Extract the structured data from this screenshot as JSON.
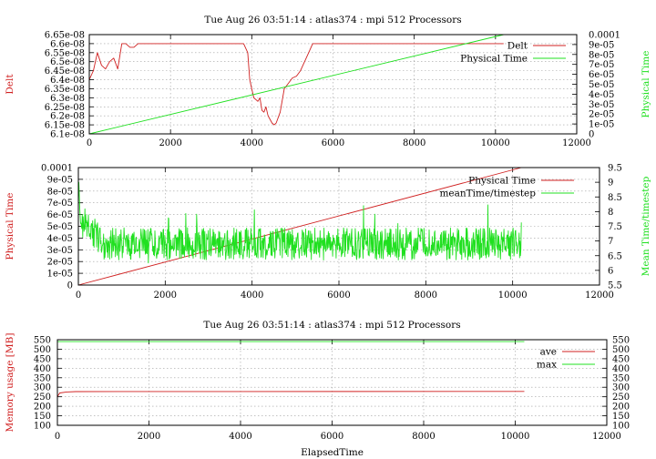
{
  "colors": {
    "red": "#d02020",
    "green": "#20e020",
    "grid": "#a0a0a0",
    "axis": "#000000"
  },
  "chart_data": [
    {
      "type": "line",
      "title": "Tue Aug 26 03:51:14 : atlas374 : mpi 512 Processors",
      "xlabel": "",
      "ylabel": "Delt",
      "y2label": "Physical Time",
      "xlim": [
        0,
        12000
      ],
      "ylim": [
        6.1e-08,
        6.65e-08
      ],
      "y2lim": [
        0,
        0.0001
      ],
      "x_ticks": [
        "0",
        "2000",
        "4000",
        "6000",
        "8000",
        "10000",
        "12000"
      ],
      "y_ticks": [
        "6.1e-08",
        "6.15e-08",
        "6.2e-08",
        "6.25e-08",
        "6.3e-08",
        "6.35e-08",
        "6.4e-08",
        "6.45e-08",
        "6.5e-08",
        "6.55e-08",
        "6.6e-08",
        "6.65e-08"
      ],
      "y2_ticks": [
        "0",
        "1e-05",
        "2e-05",
        "3e-05",
        "4e-05",
        "5e-05",
        "6e-05",
        "7e-05",
        "8e-05",
        "9e-05",
        "0.0001"
      ],
      "grid": true,
      "legend_position": "top-right",
      "series": [
        {
          "name": "Delt",
          "color": "#d02020",
          "axis": "y",
          "x": [
            0,
            100,
            200,
            300,
            400,
            500,
            600,
            700,
            800,
            900,
            1000,
            1100,
            1200,
            1400,
            2000,
            2500,
            3000,
            3500,
            3800,
            3900,
            3950,
            4000,
            4050,
            4100,
            4150,
            4200,
            4250,
            4300,
            4350,
            4400,
            4450,
            4500,
            4550,
            4600,
            4700,
            4800,
            4900,
            5000,
            5100,
            5200,
            5300,
            5400,
            5500,
            6000,
            7000,
            8000,
            9000,
            10200
          ],
          "y": [
            6.4e-08,
            6.45e-08,
            6.55e-08,
            6.48e-08,
            6.46e-08,
            6.5e-08,
            6.52e-08,
            6.46e-08,
            6.6e-08,
            6.6e-08,
            6.58e-08,
            6.58e-08,
            6.6e-08,
            6.6e-08,
            6.6e-08,
            6.6e-08,
            6.6e-08,
            6.6e-08,
            6.6e-08,
            6.55e-08,
            6.4e-08,
            6.35e-08,
            6.3e-08,
            6.29e-08,
            6.28e-08,
            6.3e-08,
            6.23e-08,
            6.22e-08,
            6.25e-08,
            6.2e-08,
            6.18e-08,
            6.16e-08,
            6.15e-08,
            6.16e-08,
            6.22e-08,
            6.35e-08,
            6.38e-08,
            6.41e-08,
            6.42e-08,
            6.45e-08,
            6.5e-08,
            6.55e-08,
            6.6e-08,
            6.6e-08,
            6.6e-08,
            6.6e-08,
            6.6e-08,
            6.6e-08
          ]
        },
        {
          "name": "Physical Time",
          "color": "#20e020",
          "axis": "y2",
          "x": [
            0,
            10200
          ],
          "y": [
            0,
            0.0001
          ]
        }
      ]
    },
    {
      "type": "line",
      "title": "",
      "xlabel": "",
      "ylabel": "Physical Time",
      "y2label": "Mean Time/timestep",
      "xlim": [
        0,
        12000
      ],
      "ylim": [
        0,
        0.0001
      ],
      "y2lim": [
        5.5,
        9.5
      ],
      "x_ticks": [
        "0",
        "2000",
        "4000",
        "6000",
        "8000",
        "10000",
        "12000"
      ],
      "y_ticks": [
        "0",
        "1e-05",
        "2e-05",
        "3e-05",
        "4e-05",
        "5e-05",
        "6e-05",
        "7e-05",
        "8e-05",
        "9e-05",
        "0.0001"
      ],
      "y2_ticks": [
        "5.5",
        "6",
        "6.5",
        "7",
        "7.5",
        "8",
        "8.5",
        "9",
        "9.5"
      ],
      "grid": true,
      "legend_position": "top-right",
      "series": [
        {
          "name": "Physical Time",
          "color": "#d02020",
          "axis": "y",
          "x": [
            0,
            10200
          ],
          "y": [
            0,
            0.0001
          ]
        },
        {
          "name": "meanTime/timestep",
          "color": "#20e020",
          "axis": "y2",
          "x_range": [
            0,
            10200
          ],
          "points": 1020,
          "mean": 6.9,
          "noise_amplitude": 0.55,
          "start_values": [
            8.4,
            9.0,
            8.6,
            8.2,
            7.9,
            7.6
          ]
        }
      ]
    },
    {
      "type": "line",
      "title": "Tue Aug 26 03:51:14 : atlas374 : mpi 512 Processors",
      "xlabel": "ElapsedTime",
      "ylabel": "Memory usage [MB]",
      "xlim": [
        0,
        12000
      ],
      "ylim": [
        100,
        550
      ],
      "y2lim": [
        100,
        550
      ],
      "x_ticks": [
        "0",
        "2000",
        "4000",
        "6000",
        "8000",
        "10000",
        "12000"
      ],
      "y_ticks": [
        "100",
        "150",
        "200",
        "250",
        "300",
        "350",
        "400",
        "450",
        "500",
        "550"
      ],
      "y2_ticks": [
        "100",
        "150",
        "200",
        "250",
        "300",
        "350",
        "400",
        "450",
        "500",
        "550"
      ],
      "grid": true,
      "legend_position": "top-right",
      "series": [
        {
          "name": "ave",
          "color": "#d02020",
          "axis": "y",
          "x": [
            0,
            50,
            200,
            400,
            10200
          ],
          "y": [
            250,
            270,
            275,
            277,
            278
          ]
        },
        {
          "name": "max",
          "color": "#20e020",
          "axis": "y",
          "x": [
            0,
            10200
          ],
          "y": [
            540,
            540
          ]
        }
      ]
    }
  ]
}
